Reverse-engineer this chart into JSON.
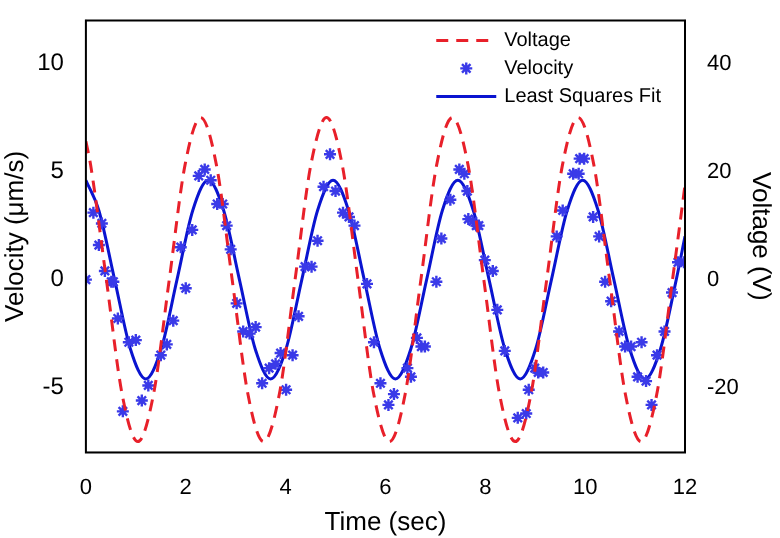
{
  "chart_data": {
    "type": "line",
    "xlabel": "Time (sec)",
    "ylabel": "Velocity (μm/s)",
    "y2label": "Voltage (V)",
    "xlim": [
      0,
      12
    ],
    "xticks": [
      0,
      2,
      4,
      6,
      8,
      10,
      12
    ],
    "ylim": [
      -8,
      12
    ],
    "yticks": [
      -5,
      0,
      5,
      10
    ],
    "y2lim": [
      -32,
      48
    ],
    "y2ticks": [
      -20,
      0,
      20,
      40
    ],
    "grid": false,
    "legend": "top right",
    "series": [
      {
        "name": "Voltage",
        "type": "line",
        "axis": "y2",
        "color": "#e8202a",
        "line_style": "dashed",
        "marker": "none",
        "x": [
          0,
          0.095,
          0.41,
          0.725,
          1.04,
          1.355,
          1.67,
          1.985,
          2.3,
          2.615,
          2.93,
          3.245,
          3.56,
          3.875,
          4.19,
          4.505,
          4.82,
          5.135,
          5.45,
          5.765,
          6.08,
          6.395,
          6.71,
          7.025,
          7.34,
          7.655,
          7.97,
          8.285,
          8.6,
          8.915,
          9.23,
          9.545,
          9.86,
          10.175,
          10.49,
          10.805,
          11.12,
          11.435,
          11.75,
          12
        ],
        "values": [
          25.6,
          21.2,
          0,
          -21.2,
          -30,
          -21.2,
          0,
          21.2,
          30,
          21.2,
          0,
          -21.2,
          -30,
          -21.2,
          0,
          21.2,
          30,
          21.2,
          0,
          -21.2,
          -30,
          -21.2,
          0,
          21.2,
          30,
          21.2,
          0,
          -21.2,
          -30,
          -21.2,
          0,
          21.2,
          30,
          21.2,
          0,
          -21.2,
          -30,
          -21.2,
          0,
          17.5
        ]
      },
      {
        "name": "Velocity",
        "type": "scatter",
        "color": "#3a3ae8",
        "marker": "cross",
        "x": [
          0,
          0.15,
          0.26,
          0.32,
          0.38,
          0.51,
          0.55,
          0.64,
          0.74,
          0.86,
          1.0,
          1.12,
          1.25,
          1.5,
          1.62,
          1.75,
          1.9,
          2.0,
          2.13,
          2.26,
          2.38,
          2.5,
          2.63,
          2.74,
          2.82,
          2.9,
          3.02,
          3.15,
          3.28,
          3.4,
          3.53,
          3.67,
          3.8,
          3.9,
          4.01,
          4.14,
          4.26,
          4.39,
          4.52,
          4.64,
          4.76,
          4.89,
          5.0,
          5.15,
          5.27,
          5.38,
          5.63,
          5.77,
          5.9,
          6.06,
          6.17,
          6.44,
          6.51,
          6.63,
          6.72,
          6.79,
          7.02,
          7.12,
          7.3,
          7.48,
          7.58,
          7.64,
          7.66,
          7.75,
          7.82,
          7.87,
          7.99,
          8.15,
          8.24,
          8.39,
          8.65,
          8.82,
          8.87,
          8.99,
          9.06,
          9.16,
          9.43,
          9.55,
          9.76,
          9.87,
          9.89,
          9.98,
          10.16,
          10.28,
          10.4,
          10.52,
          10.68,
          10.8,
          10.92,
          11.05,
          11.13,
          11.22,
          11.33,
          11.44,
          11.59,
          11.74,
          11.86,
          11.98
        ],
        "values": [
          0,
          3.1,
          1.6,
          2.6,
          0.4,
          -0.1,
          -0.1,
          -1.8,
          -6.1,
          -2.9,
          -2.8,
          -5.6,
          -4.9,
          -3.5,
          -3,
          -1.9,
          1.5,
          -0.4,
          2.3,
          4.8,
          5.1,
          4.6,
          3.5,
          3.5,
          2.5,
          1.4,
          -1.1,
          -2.4,
          -2.5,
          -2.2,
          -4.8,
          -4.1,
          -3.9,
          -3.4,
          -5.1,
          -3.5,
          -1.7,
          0.6,
          0.6,
          1.8,
          4.3,
          5.8,
          4.1,
          3.1,
          2.9,
          2.5,
          -0.2,
          -2.9,
          -4.8,
          -5.8,
          -5.3,
          -4.1,
          -4.5,
          -2.7,
          -3.1,
          -3.1,
          -0.1,
          1.9,
          3.7,
          5.1,
          4.9,
          4.1,
          2.8,
          2.7,
          2.5,
          2.5,
          0.9,
          0.4,
          -1.4,
          -3.3,
          -6.4,
          -6.2,
          -5.1,
          -4.1,
          -4.3,
          -4.3,
          2,
          3.2,
          4.9,
          4.9,
          5.6,
          5.6,
          2.9,
          2,
          -0.1,
          -1,
          -2.4,
          -3.1,
          -3.1,
          -4.5,
          -2.9,
          -4.7,
          -5.8,
          -3.5,
          -2.4,
          -0.6,
          0.8,
          0.8
        ]
      },
      {
        "name": "Least Squares Fit",
        "type": "line",
        "color": "#0a14d0",
        "line_style": "solid",
        "marker": "none",
        "x": [
          0,
          0.26,
          0.575,
          0.89,
          1.2,
          1.51,
          1.825,
          2.14,
          2.45,
          2.76,
          3.075,
          3.39,
          3.7,
          4.01,
          4.325,
          4.64,
          4.95,
          5.26,
          5.575,
          5.89,
          6.2,
          6.51,
          6.825,
          7.14,
          7.45,
          7.76,
          8.075,
          8.39,
          8.7,
          9.01,
          9.325,
          9.64,
          9.95,
          10.26,
          10.575,
          10.89,
          11.2,
          11.51,
          11.825,
          12
        ],
        "values": [
          4.6,
          3.2,
          0,
          -3.2,
          -4.6,
          -3.2,
          0,
          3.2,
          4.6,
          3.2,
          0,
          -3.2,
          -4.6,
          -3.2,
          0,
          3.2,
          4.6,
          3.2,
          0,
          -3.2,
          -4.6,
          -3.2,
          0,
          3.2,
          4.6,
          3.2,
          0,
          -3.2,
          -4.6,
          -3.2,
          0,
          3.2,
          4.6,
          3.2,
          0,
          -3.2,
          -4.6,
          -3.2,
          0,
          2
        ]
      }
    ]
  }
}
